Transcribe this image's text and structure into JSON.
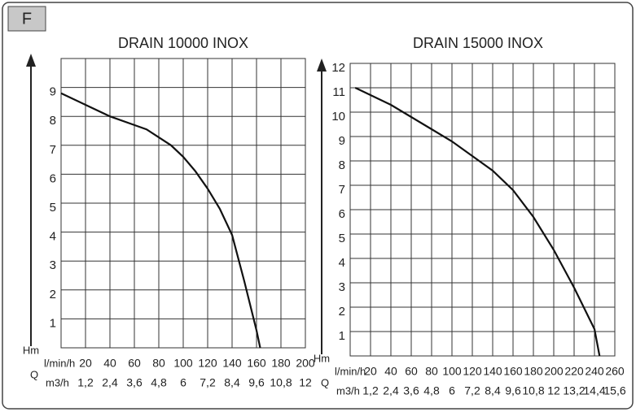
{
  "panel_label": "F",
  "chart_data": [
    {
      "type": "line",
      "title": "DRAIN 10000 INOX",
      "y_label": "Hm",
      "x_label": "Q",
      "x_unit": "l/min/h",
      "x2_unit": "m3/h",
      "color": "#111111",
      "grid": true,
      "x": [
        0,
        20,
        40,
        60,
        70,
        90,
        100,
        110,
        120,
        130,
        140,
        150,
        160,
        163
      ],
      "values": [
        8.8,
        8.4,
        8.0,
        7.7,
        7.55,
        7.0,
        6.6,
        6.1,
        5.5,
        4.8,
        3.9,
        2.3,
        0.6,
        0
      ],
      "xlim": [
        0,
        200
      ],
      "xticks": [
        20,
        40,
        60,
        80,
        100,
        120,
        140,
        160,
        180,
        200
      ],
      "x2lim": [
        0,
        12
      ],
      "x2ticks": [
        {
          "value": 1.2,
          "label": "1,2"
        },
        {
          "value": 2.4,
          "label": "2,4"
        },
        {
          "value": 3.6,
          "label": "3,6"
        },
        {
          "value": 4.8,
          "label": "4,8"
        },
        6,
        {
          "value": 7.2,
          "label": "7,2"
        },
        {
          "value": 8.4,
          "label": "8,4"
        },
        {
          "value": 9.6,
          "label": "9,6"
        },
        {
          "value": 10.8,
          "label": "10,8"
        },
        12
      ],
      "ylim": [
        0,
        10
      ],
      "yticks": [
        1,
        2,
        3,
        4,
        5,
        6,
        7,
        8,
        9
      ]
    },
    {
      "type": "line",
      "title": "DRAIN 15000 INOX",
      "y_label": "Hm",
      "x_label": "Q",
      "x_unit": "l/min/h",
      "x2_unit": "m3/h",
      "color": "#111111",
      "grid": true,
      "x": [
        5,
        20,
        40,
        60,
        80,
        100,
        120,
        140,
        160,
        180,
        200,
        220,
        240,
        245
      ],
      "values": [
        11,
        10.7,
        10.3,
        9.8,
        9.3,
        8.8,
        8.2,
        7.6,
        6.8,
        5.7,
        4.35,
        2.8,
        1.1,
        0
      ],
      "xlim": [
        0,
        260
      ],
      "xticks": [
        20,
        40,
        60,
        80,
        100,
        120,
        140,
        160,
        180,
        200,
        220,
        240,
        260
      ],
      "x2lim": [
        0,
        15.6
      ],
      "x2ticks": [
        {
          "value": 1.2,
          "label": "1,2"
        },
        {
          "value": 2.4,
          "label": "2,4"
        },
        {
          "value": 3.6,
          "label": "3,6"
        },
        {
          "value": 4.8,
          "label": "4,8"
        },
        6,
        {
          "value": 7.2,
          "label": "7,2"
        },
        {
          "value": 8.4,
          "label": "8,4"
        },
        {
          "value": 9.6,
          "label": "9,6"
        },
        {
          "value": 10.8,
          "label": "10,8"
        },
        12,
        {
          "value": 13.2,
          "label": "13,2"
        },
        {
          "value": 14.4,
          "label": "14,4"
        },
        {
          "value": 15.6,
          "label": "15,6"
        }
      ],
      "ylim": [
        0,
        12
      ],
      "yticks": [
        1,
        2,
        3,
        4,
        5,
        6,
        7,
        8,
        9,
        10,
        11,
        12
      ]
    }
  ]
}
